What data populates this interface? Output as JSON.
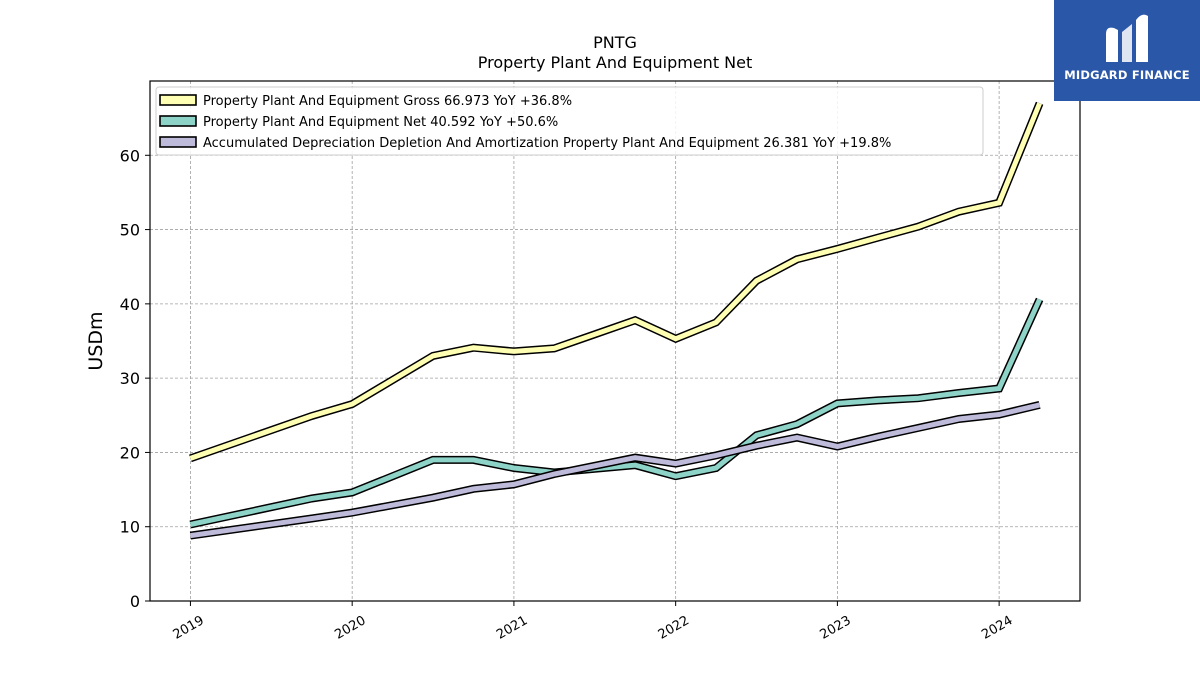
{
  "logo": {
    "text": "MIDGARD FINANCE"
  },
  "chart_data": {
    "type": "line",
    "title": "PNTG",
    "subtitle": "Property Plant And Equipment Net",
    "xlabel": "",
    "ylabel": "USDm",
    "xlim": [
      2018.75,
      2024.5
    ],
    "ylim": [
      0,
      70
    ],
    "x_ticks": [
      "2019",
      "2020",
      "2021",
      "2022",
      "2023",
      "2024"
    ],
    "y_ticks": [
      0,
      10,
      20,
      30,
      40,
      50,
      60
    ],
    "grid": true,
    "legend_position": "top-left",
    "series": [
      {
        "name": "Property Plant And Equipment Gross  66.973 YoY +36.8%",
        "color": "#ffffb3",
        "x": [
          2019.0,
          2019.75,
          2020.0,
          2020.5,
          2020.75,
          2021.0,
          2021.25,
          2021.5,
          2021.75,
          2022.0,
          2022.25,
          2022.5,
          2022.75,
          2023.0,
          2023.25,
          2023.5,
          2023.75,
          2024.0,
          2024.25
        ],
        "y": [
          19.2,
          24.9,
          26.5,
          33.0,
          34.1,
          33.6,
          34.0,
          35.9,
          37.8,
          35.3,
          37.5,
          43.1,
          46.0,
          47.4,
          48.9,
          50.4,
          52.4,
          53.6,
          67.0
        ]
      },
      {
        "name": "Property Plant And Equipment Net  40.592 YoY +50.6%",
        "color": "#8dd3c7",
        "x": [
          2019.0,
          2019.75,
          2020.0,
          2020.5,
          2020.75,
          2021.0,
          2021.25,
          2021.5,
          2021.75,
          2022.0,
          2022.25,
          2022.5,
          2022.75,
          2023.0,
          2023.25,
          2023.5,
          2023.75,
          2024.0,
          2024.25
        ],
        "y": [
          10.3,
          13.8,
          14.6,
          19.0,
          19.0,
          17.9,
          17.3,
          17.8,
          18.3,
          16.8,
          17.9,
          22.3,
          23.8,
          26.6,
          27.0,
          27.3,
          28.0,
          28.6,
          40.6
        ]
      },
      {
        "name": "Accumulated Depreciation Depletion And Amortization Property Plant And Equipment  26.381 YoY +19.8%",
        "color": "#bebada",
        "x": [
          2019.0,
          2019.75,
          2020.0,
          2020.5,
          2020.75,
          2021.0,
          2021.25,
          2021.5,
          2021.75,
          2022.0,
          2022.25,
          2022.5,
          2022.75,
          2023.0,
          2023.25,
          2023.5,
          2023.75,
          2024.0,
          2024.25
        ],
        "y": [
          8.8,
          11.1,
          11.9,
          13.9,
          15.1,
          15.7,
          17.1,
          18.2,
          19.3,
          18.5,
          19.6,
          20.9,
          22.0,
          20.8,
          22.1,
          23.3,
          24.5,
          25.1,
          26.4
        ]
      }
    ]
  }
}
